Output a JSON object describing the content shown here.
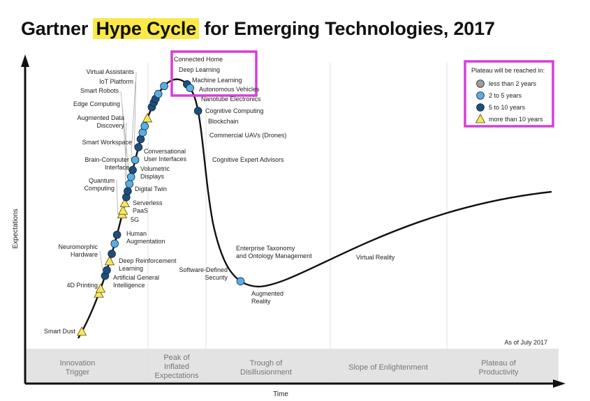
{
  "title": {
    "before": "Gartner ",
    "highlight": "Hype Cycle",
    "after": " for Emerging Technologies, 2017"
  },
  "colors": {
    "highlight": "#fbe94a",
    "under_2": "#9e9e9e",
    "two_to_five": "#5aaee3",
    "five_to_ten": "#1f4e79",
    "more_than_10": "#f5e663",
    "callout_border": "#d63fd6",
    "phase_band": "#e3e3e3"
  },
  "chart_data": {
    "type": "scatter",
    "xlabel": "Time",
    "ylabel": "Expectations",
    "note": "As of July 2017",
    "phases": [
      {
        "id": "innovation",
        "lines": [
          "Innovation",
          "Trigger"
        ]
      },
      {
        "id": "peak",
        "lines": [
          "Peak of",
          "Inflated",
          "Expectations"
        ]
      },
      {
        "id": "trough",
        "lines": [
          "Trough of",
          "Disillusionment"
        ]
      },
      {
        "id": "slope",
        "lines": [
          "Slope of Enlightenment"
        ]
      },
      {
        "id": "plateau",
        "lines": [
          "Plateau of",
          "Productivity"
        ]
      }
    ],
    "legend": {
      "title": "Plateau will be reached in:",
      "placement": "top-right",
      "items": [
        {
          "key": "under_2",
          "label": "less than 2 years",
          "shape": "circle"
        },
        {
          "key": "two_to_five",
          "label": "2 to 5 years",
          "shape": "circle"
        },
        {
          "key": "five_to_ten",
          "label": "5 to 10 years",
          "shape": "circle"
        },
        {
          "key": "more_than_10",
          "label": "more than 10 years",
          "shape": "triangle"
        }
      ]
    },
    "technologies": [
      {
        "name": "Smart Dust",
        "cat": "more_than_10",
        "t": 0.03
      },
      {
        "name": "4D Printing",
        "cat": "more_than_10",
        "t": 0.195
      },
      {
        "name": "Artificial General Intelligence",
        "cat": "more_than_10",
        "t": 0.215
      },
      {
        "name": "Deep Reinforcement Learning",
        "cat": "five_to_ten",
        "t": 0.268
      },
      {
        "name": "Neuromorphic Hardware",
        "cat": "five_to_ten",
        "t": 0.29
      },
      {
        "name": "Human Augmentation",
        "cat": "more_than_10",
        "t": 0.325
      },
      {
        "name": "5G",
        "cat": "five_to_ten",
        "t": 0.355
      },
      {
        "name": "Serverless PaaS",
        "cat": "two_to_five",
        "t": 0.395
      },
      {
        "name": "Digital Twin",
        "cat": "five_to_ten",
        "t": 0.43
      },
      {
        "name": "Quantum Computing",
        "cat": "more_than_10",
        "t": 0.51
      },
      {
        "name": "Volumetric Displays",
        "cat": "more_than_10",
        "t": 0.525
      },
      {
        "name": "Brain-Computer Interface",
        "cat": "more_than_10",
        "t": 0.555
      },
      {
        "name": "Conversational User Interfaces",
        "cat": "five_to_ten",
        "t": 0.58
      },
      {
        "name": "Smart Workspace",
        "cat": "five_to_ten",
        "t": 0.605
      },
      {
        "name": "Augmented Data Discovery",
        "cat": "two_to_five",
        "t": 0.635
      },
      {
        "name": "Edge Computing",
        "cat": "two_to_five",
        "t": 0.665
      },
      {
        "name": "Smart Robots",
        "cat": "five_to_ten",
        "t": 0.695
      },
      {
        "name": "IoT Platform",
        "cat": "two_to_five",
        "t": 0.74
      },
      {
        "name": "Virtual Assistants",
        "cat": "five_to_ten",
        "t": 0.8
      },
      {
        "name": "Connected Home",
        "cat": "five_to_ten",
        "t": 0.84
      },
      {
        "name": "Deep Learning",
        "cat": "two_to_five",
        "t": 0.875
      },
      {
        "name": "Machine Learning",
        "cat": "two_to_five",
        "t": 0.91
      },
      {
        "name": "Autonomous Vehicles",
        "cat": "more_than_10",
        "t": 0.955
      },
      {
        "name": "Nanotube Electronics",
        "cat": "five_to_ten",
        "t": 1.04
      },
      {
        "name": "Cognitive Computing",
        "cat": "five_to_ten",
        "t": 1.085
      },
      {
        "name": "Blockchain",
        "cat": "five_to_ten",
        "t": 1.125
      },
      {
        "name": "Commercial UAVs (Drones)",
        "cat": "two_to_five",
        "t": 1.185
      },
      {
        "name": "Cognitive Expert Advisors",
        "cat": "two_to_five",
        "t": 1.31
      },
      {
        "name": "Enterprise Taxonomy and Ontology Management",
        "cat": "five_to_ten",
        "t": 1.82
      },
      {
        "name": "Software-Defined Security",
        "cat": "two_to_five",
        "t": 1.9
      },
      {
        "name": "Augmented Reality",
        "cat": "five_to_ten",
        "t": 2.2
      },
      {
        "name": "Virtual Reality",
        "cat": "two_to_five",
        "t": 3.72
      }
    ]
  }
}
